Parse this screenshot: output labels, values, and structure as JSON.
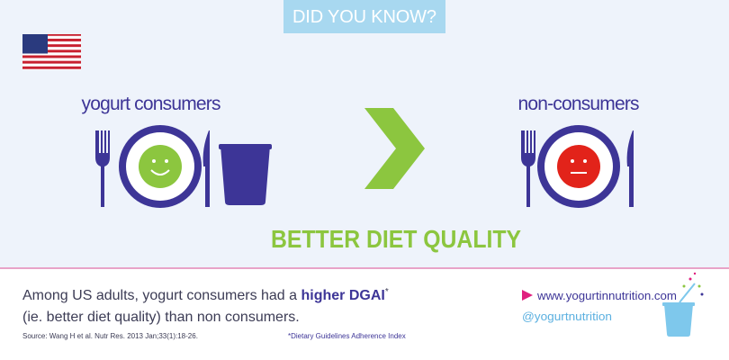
{
  "header": {
    "title": "DID YOU KNOW?"
  },
  "left": {
    "label": "yogurt consumers"
  },
  "right": {
    "label": "non-consumers"
  },
  "headline": "BETTER DIET QUALITY",
  "footer": {
    "statement": {
      "before": "Among US adults, yogurt consumers had a",
      "emphasis": "higher DGAI",
      "footnote_mark": "*",
      "after": "(ie. better diet quality) than non consumers."
    },
    "source": "Source: Wang H et al. Nutr Res. 2013 Jan;33(1):18-26.",
    "footnote": "*Dietary Guidelines Adherence Index",
    "links": {
      "website": "www.yogurtinnutrition.com",
      "social": "@yogurtnutrition"
    }
  }
}
